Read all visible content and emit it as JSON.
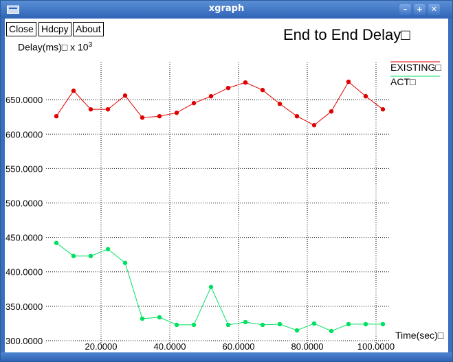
{
  "window": {
    "title": "xgraph"
  },
  "toolbar": {
    "close_label": "Close",
    "hdcpy_label": "Hdcpy",
    "about_label": "About"
  },
  "colors": {
    "titlebar": "#2f64b6",
    "existing": "#e00000",
    "act": "#00e060"
  },
  "chart_data": {
    "type": "line",
    "title": "End to End Delay□",
    "ylabel": "Delay(ms)□ x 10",
    "ylabel_exponent": "3",
    "xlabel": "Time(sec)□",
    "xlim": [
      4,
      104
    ],
    "ylim": [
      295,
      705
    ],
    "x_ticks": [
      20,
      40,
      60,
      80,
      100
    ],
    "x_tick_labels": [
      "20.0000",
      "40.0000",
      "60.0000",
      "80.0000",
      "100.0000"
    ],
    "y_ticks": [
      300,
      350,
      400,
      450,
      500,
      550,
      600,
      650
    ],
    "y_tick_labels": [
      "300.0000",
      "350.0000",
      "400.0000",
      "450.0000",
      "500.0000",
      "550.0000",
      "600.0000",
      "650.0000"
    ],
    "grid": true,
    "legend_position": "right",
    "series": [
      {
        "name": "EXISTING□",
        "color": "#e00000",
        "x": [
          7,
          12,
          17,
          22,
          27,
          32,
          37,
          42,
          47,
          52,
          57,
          62,
          67,
          72,
          77,
          82,
          87,
          92,
          97,
          102
        ],
        "y": [
          626,
          663,
          636,
          636,
          656,
          624,
          626,
          631,
          645,
          655,
          667,
          675,
          664,
          644,
          626,
          613,
          633,
          676,
          655,
          636
        ]
      },
      {
        "name": "ACT□",
        "color": "#00e060",
        "x": [
          7,
          12,
          17,
          22,
          27,
          32,
          37,
          42,
          47,
          52,
          57,
          62,
          67,
          72,
          77,
          82,
          87,
          92,
          97,
          102
        ],
        "y": [
          442,
          423,
          423,
          433,
          413,
          332,
          334,
          323,
          323,
          378,
          323,
          327,
          323,
          324,
          315,
          325,
          314,
          324,
          324,
          324
        ]
      }
    ]
  }
}
